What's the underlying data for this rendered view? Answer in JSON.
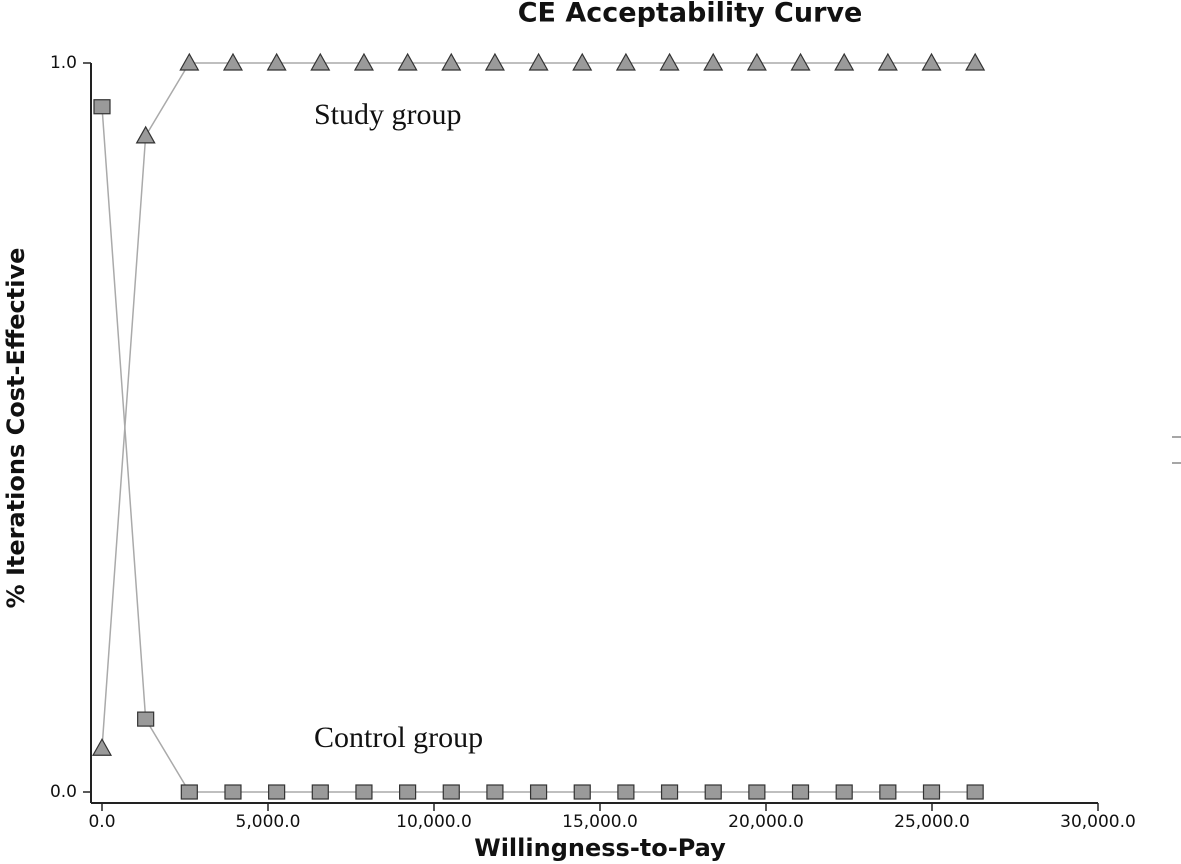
{
  "chart_data": {
    "type": "line",
    "title": "CE Acceptability Curve",
    "x_label": "Willingness-to-Pay",
    "y_label": "% Iterations Cost-Effective",
    "x": [
      0,
      1315,
      2630,
      3945,
      5260,
      6575,
      7890,
      9205,
      10520,
      11835,
      13150,
      14465,
      15780,
      17095,
      18410,
      19725,
      21040,
      22355,
      23670,
      24985,
      26300
    ],
    "series": [
      {
        "name": "Study group",
        "color": "#9a9a9a",
        "marker": "triangle",
        "values": [
          0.06,
          0.9,
          1.0,
          1.0,
          1.0,
          1.0,
          1.0,
          1.0,
          1.0,
          1.0,
          1.0,
          1.0,
          1.0,
          1.0,
          1.0,
          1.0,
          1.0,
          1.0,
          1.0,
          1.0,
          1.0
        ]
      },
      {
        "name": "Control group",
        "color": "#9a9a9a",
        "marker": "square",
        "values": [
          0.94,
          0.1,
          0.0,
          0.0,
          0.0,
          0.0,
          0.0,
          0.0,
          0.0,
          0.0,
          0.0,
          0.0,
          0.0,
          0.0,
          0.0,
          0.0,
          0.0,
          0.0,
          0.0,
          0.0,
          0.0
        ]
      }
    ],
    "xlim": [
      0,
      30000
    ],
    "ylim": [
      0,
      1
    ],
    "xticks": [
      {
        "value": 0,
        "label": "0.0"
      },
      {
        "value": 5000,
        "label": "5,000.0"
      },
      {
        "value": 10000,
        "label": "10,000.0"
      },
      {
        "value": 15000,
        "label": "15,000.0"
      },
      {
        "value": 20000,
        "label": "20,000.0"
      },
      {
        "value": 25000,
        "label": "25,000.0"
      },
      {
        "value": 30000,
        "label": "30,000.0"
      }
    ],
    "yticks": [
      {
        "value": 0,
        "label": "0.0"
      },
      {
        "value": 1,
        "label": "1.0"
      }
    ],
    "grid": false
  }
}
